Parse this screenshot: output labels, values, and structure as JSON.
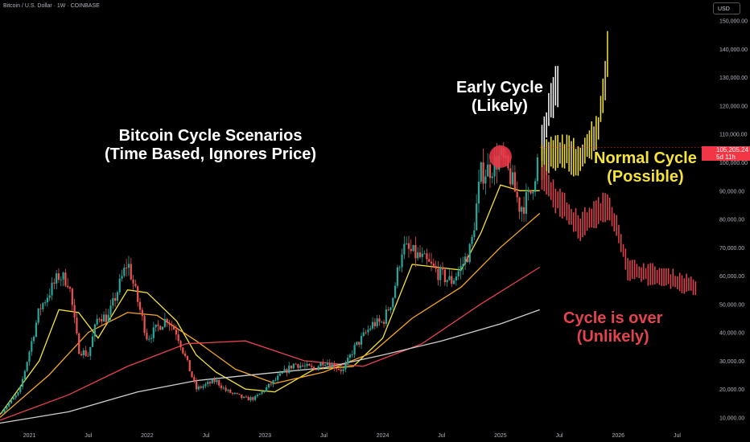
{
  "header": {
    "symbol": "Bitcoin / U.S. Dollar · 1W · COINBASE",
    "currency_button": "USD"
  },
  "price_tag": {
    "price": "105,205.24",
    "countdown": "5d 11h"
  },
  "annotations": {
    "title_line1": "Bitcoin Cycle Scenarios",
    "title_line2": "(Time Based, Ignores Price)",
    "early_line1": "Early Cycle",
    "early_line2": "(Likely)",
    "normal_line1": "Normal Cycle",
    "normal_line2": "(Possible)",
    "over_line1": "Cycle is over",
    "over_line2": "(Unlikely)"
  },
  "colors": {
    "background": "#000000",
    "up": "#26a69a",
    "down": "#ef5350",
    "early": "#ffffff",
    "normal": "#f5e23a",
    "over": "#e5434f",
    "ma_yellow": "#f5e23a",
    "ma_orange": "#f5a623",
    "ma_red": "#e5434f",
    "ma_grey": "#d0d0d0"
  },
  "chart_data": {
    "type": "candlestick",
    "xlabel": "",
    "ylabel": "",
    "x_ticks": [
      {
        "date": "2021-01",
        "label": "2021"
      },
      {
        "date": "2021-07",
        "label": "Jul"
      },
      {
        "date": "2022-01",
        "label": "2022"
      },
      {
        "date": "2022-07",
        "label": "Jul"
      },
      {
        "date": "2023-01",
        "label": "2023"
      },
      {
        "date": "2023-07",
        "label": "Jul"
      },
      {
        "date": "2024-01",
        "label": "2024"
      },
      {
        "date": "2024-07",
        "label": "Jul"
      },
      {
        "date": "2025-01",
        "label": "2025"
      },
      {
        "date": "2025-07",
        "label": "Jul"
      },
      {
        "date": "2026-01",
        "label": "2026"
      },
      {
        "date": "2026-07",
        "label": "Jul"
      }
    ],
    "y_ticks": [
      "10,000.00",
      "20,000.00",
      "30,000.00",
      "40,000.00",
      "50,000.00",
      "60,000.00",
      "70,000.00",
      "80,000.00",
      "90,000.00",
      "100,000.00",
      "110,000.00",
      "120,000.00",
      "130,000.00",
      "140,000.00",
      "150,000.00"
    ],
    "y_range": [
      7000,
      155000
    ],
    "x_range": [
      "2020-10",
      "2026-10"
    ],
    "price_anchors": [
      [
        "2020-10",
        11500
      ],
      [
        "2020-12",
        19000
      ],
      [
        "2021-02",
        48000
      ],
      [
        "2021-04",
        60000
      ],
      [
        "2021-05",
        58000
      ],
      [
        "2021-06",
        34000
      ],
      [
        "2021-07",
        32000
      ],
      [
        "2021-08",
        46000
      ],
      [
        "2021-09",
        45000
      ],
      [
        "2021-11",
        65000
      ],
      [
        "2022-01",
        38000
      ],
      [
        "2022-03",
        45000
      ],
      [
        "2022-04",
        40000
      ],
      [
        "2022-05",
        30000
      ],
      [
        "2022-06",
        20000
      ],
      [
        "2022-08",
        23000
      ],
      [
        "2022-09",
        19500
      ],
      [
        "2022-11",
        16500
      ],
      [
        "2022-12",
        16800
      ],
      [
        "2023-02",
        23000
      ],
      [
        "2023-04",
        29000
      ],
      [
        "2023-06",
        27000
      ],
      [
        "2023-07",
        30000
      ],
      [
        "2023-09",
        26500
      ],
      [
        "2023-10",
        34000
      ],
      [
        "2023-12",
        43000
      ],
      [
        "2024-01",
        43500
      ],
      [
        "2024-02",
        52000
      ],
      [
        "2024-03",
        70000
      ],
      [
        "2024-05",
        66000
      ],
      [
        "2024-07",
        60000
      ],
      [
        "2024-08",
        58000
      ],
      [
        "2024-09",
        63000
      ],
      [
        "2024-10",
        70000
      ],
      [
        "2024-11",
        96000
      ],
      [
        "2024-12",
        98000
      ],
      [
        "2025-01",
        102000
      ],
      [
        "2025-02",
        95000
      ],
      [
        "2025-03",
        84000
      ],
      [
        "2025-04",
        88000
      ],
      [
        "2025-05",
        104000
      ]
    ],
    "scenarios": [
      {
        "name": "Early Cycle",
        "color": "early",
        "anchors": [
          [
            "2025-05",
            104000
          ],
          [
            "2025-05-20",
            112000
          ],
          [
            "2025-06",
            120000
          ],
          [
            "2025-06-20",
            126000
          ],
          [
            "2025-07",
            130000
          ]
        ]
      },
      {
        "name": "Normal Cycle",
        "color": "normal",
        "anchors": [
          [
            "2025-05",
            100000
          ],
          [
            "2025-07",
            104000
          ],
          [
            "2025-09",
            101000
          ],
          [
            "2025-10",
            106000
          ],
          [
            "2025-11",
            112000
          ],
          [
            "2025-12",
            140000
          ]
        ]
      },
      {
        "name": "Cycle is over",
        "color": "over",
        "anchors": [
          [
            "2025-05",
            96000
          ],
          [
            "2025-07",
            86000
          ],
          [
            "2025-09",
            77000
          ],
          [
            "2025-10",
            80000
          ],
          [
            "2025-12",
            85000
          ],
          [
            "2026-01",
            76000
          ],
          [
            "2026-02",
            62000
          ],
          [
            "2026-05",
            60000
          ],
          [
            "2026-08",
            57000
          ],
          [
            "2026-09",
            56000
          ]
        ]
      }
    ],
    "moving_averages": [
      {
        "color": "ma_yellow",
        "anchors": [
          [
            "2020-10",
            11000
          ],
          [
            "2021-02",
            30000
          ],
          [
            "2021-04",
            48000
          ],
          [
            "2021-06",
            47000
          ],
          [
            "2021-08",
            38000
          ],
          [
            "2021-11",
            55000
          ],
          [
            "2022-01",
            54000
          ],
          [
            "2022-04",
            44000
          ],
          [
            "2022-06",
            32000
          ],
          [
            "2022-08",
            26000
          ],
          [
            "2022-11",
            20000
          ],
          [
            "2023-02",
            19000
          ],
          [
            "2023-06",
            27000
          ],
          [
            "2023-10",
            28000
          ],
          [
            "2024-01",
            38000
          ],
          [
            "2024-04",
            64000
          ],
          [
            "2024-09",
            62000
          ],
          [
            "2024-11",
            75000
          ],
          [
            "2025-01",
            92000
          ],
          [
            "2025-03",
            90000
          ],
          [
            "2025-05",
            90000
          ]
        ]
      },
      {
        "color": "ma_orange",
        "anchors": [
          [
            "2020-10",
            10000
          ],
          [
            "2021-03",
            25000
          ],
          [
            "2021-07",
            40000
          ],
          [
            "2021-11",
            47000
          ],
          [
            "2022-02",
            46000
          ],
          [
            "2022-06",
            37000
          ],
          [
            "2022-10",
            27000
          ],
          [
            "2023-02",
            22000
          ],
          [
            "2023-07",
            26000
          ],
          [
            "2023-12",
            33000
          ],
          [
            "2024-04",
            45000
          ],
          [
            "2024-09",
            56000
          ],
          [
            "2025-01",
            70000
          ],
          [
            "2025-05",
            82000
          ]
        ]
      },
      {
        "color": "ma_red",
        "anchors": [
          [
            "2020-10",
            9000
          ],
          [
            "2021-05",
            18000
          ],
          [
            "2021-11",
            28000
          ],
          [
            "2022-05",
            36000
          ],
          [
            "2022-11",
            37000
          ],
          [
            "2023-05",
            30000
          ],
          [
            "2023-11",
            28000
          ],
          [
            "2024-05",
            36000
          ],
          [
            "2024-11",
            50000
          ],
          [
            "2025-05",
            63000
          ]
        ]
      },
      {
        "color": "ma_grey",
        "anchors": [
          [
            "2020-10",
            8000
          ],
          [
            "2021-05",
            12000
          ],
          [
            "2021-12",
            19000
          ],
          [
            "2022-06",
            23000
          ],
          [
            "2023-01",
            25500
          ],
          [
            "2023-07",
            27500
          ],
          [
            "2024-01",
            32000
          ],
          [
            "2024-07",
            37000
          ],
          [
            "2025-01",
            43000
          ],
          [
            "2025-05",
            48000
          ]
        ]
      }
    ],
    "highlight": {
      "date": "2025-01",
      "price": 102000
    }
  }
}
